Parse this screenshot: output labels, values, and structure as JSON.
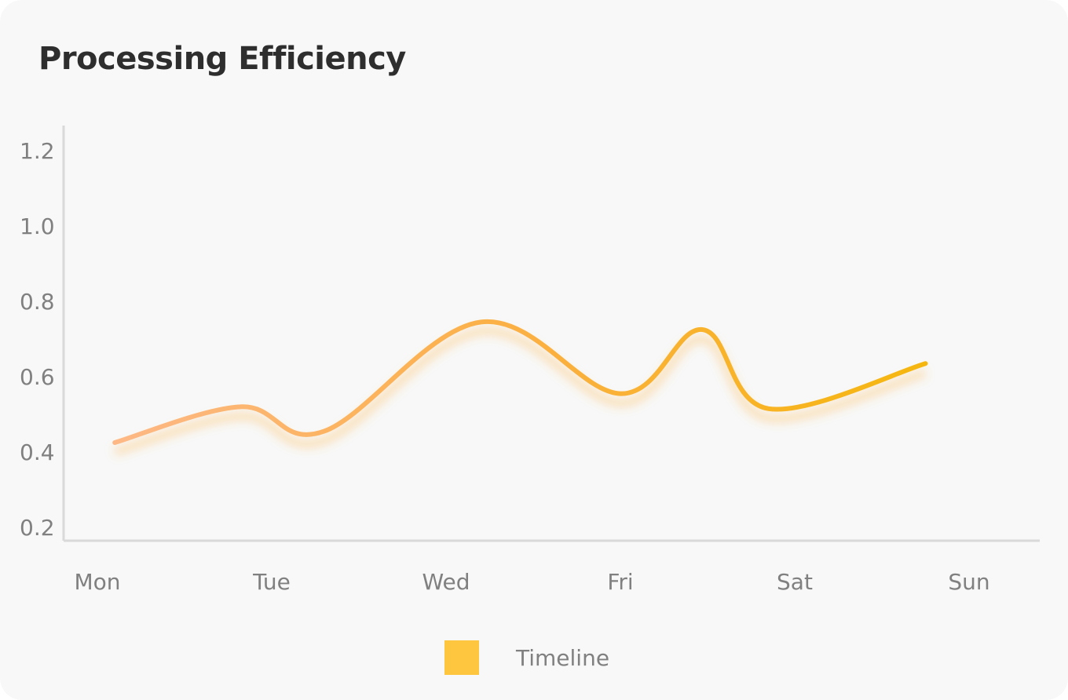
{
  "chart_data": {
    "type": "line",
    "title": "Processing Efficiency",
    "categories": [
      "Mon",
      "Tue",
      "Wed",
      "Fri",
      "Sat",
      "Sun"
    ],
    "x_positions": [
      0,
      1,
      2,
      3,
      4,
      5
    ],
    "series": [
      {
        "name": "Timeline",
        "x": [
          0.1,
          0.82,
          1.3,
          2.2,
          3.0,
          3.47,
          3.85,
          4.75
        ],
        "values": [
          0.425,
          0.52,
          0.455,
          0.745,
          0.555,
          0.725,
          0.515,
          0.635
        ]
      }
    ],
    "yticks": [
      0.2,
      0.4,
      0.6,
      0.8,
      1.0,
      1.2
    ],
    "ytick_labels": [
      "0.2",
      "0.4",
      "0.6",
      "0.8",
      "1.0",
      "1.2"
    ],
    "ylim": [
      0.2,
      1.25
    ],
    "xlabel": "",
    "ylabel": "",
    "grid": false,
    "legend": "bottom-center",
    "colors": {
      "line_start": "#fdb885",
      "line_mid": "#fbb040",
      "line_end": "#f5b70b",
      "legend_swatch": "#fec53e",
      "axis": "#d9d9d9",
      "tick_text": "#808080",
      "title_text": "#2e2e2e",
      "background": "#f8f8f8"
    }
  }
}
